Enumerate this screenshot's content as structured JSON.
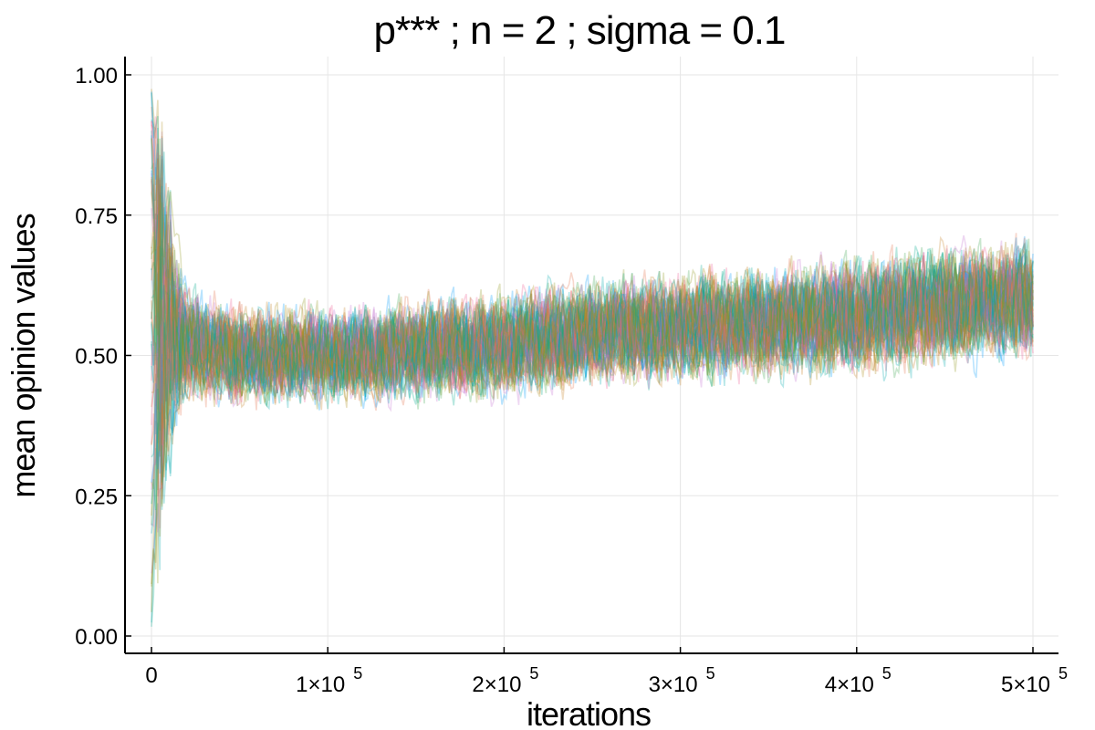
{
  "chart_data": {
    "type": "line",
    "title": "p***  ; n = 2 ; sigma = 0.1",
    "xlabel": "iterations",
    "ylabel": "mean opinion values",
    "xlim": [
      0,
      500000
    ],
    "ylim": [
      0.0,
      1.0
    ],
    "x_ticks": [
      {
        "value": 0,
        "mantissa": "0",
        "exponent": ""
      },
      {
        "value": 100000,
        "mantissa": "1×10",
        "exponent": "5"
      },
      {
        "value": 200000,
        "mantissa": "2×10",
        "exponent": "5"
      },
      {
        "value": 300000,
        "mantissa": "3×10",
        "exponent": "5"
      },
      {
        "value": 400000,
        "mantissa": "4×10",
        "exponent": "5"
      },
      {
        "value": 500000,
        "mantissa": "5×10",
        "exponent": "5"
      }
    ],
    "y_ticks": [
      {
        "value": 0.0,
        "label": "0.00"
      },
      {
        "value": 0.25,
        "label": "0.25"
      },
      {
        "value": 0.5,
        "label": "0.50"
      },
      {
        "value": 0.75,
        "label": "0.75"
      },
      {
        "value": 1.0,
        "label": "1.00"
      }
    ],
    "grid": true,
    "legend": "none",
    "series_colors": [
      "#009AFA",
      "#E36F47",
      "#3EA44E",
      "#C371D2",
      "#AC8D18",
      "#00A9AD",
      "#ED5E93",
      "#C68225",
      "#00A98D",
      "#8E971E"
    ],
    "envelope": {
      "x": [
        0,
        5000,
        10000,
        15000,
        20000,
        30000,
        50000,
        100000,
        150000,
        200000,
        250000,
        300000,
        350000,
        400000,
        450000,
        500000
      ],
      "mean": [
        0.5,
        0.55,
        0.55,
        0.53,
        0.52,
        0.51,
        0.5,
        0.5,
        0.51,
        0.52,
        0.54,
        0.55,
        0.56,
        0.57,
        0.59,
        0.6
      ],
      "lower": [
        0.0,
        0.05,
        0.15,
        0.3,
        0.37,
        0.38,
        0.39,
        0.4,
        0.4,
        0.41,
        0.42,
        0.43,
        0.44,
        0.44,
        0.45,
        0.46
      ],
      "upper": [
        1.0,
        0.95,
        0.85,
        0.72,
        0.66,
        0.64,
        0.63,
        0.63,
        0.64,
        0.66,
        0.68,
        0.69,
        0.71,
        0.72,
        0.73,
        0.75
      ]
    },
    "num_series": 60
  }
}
